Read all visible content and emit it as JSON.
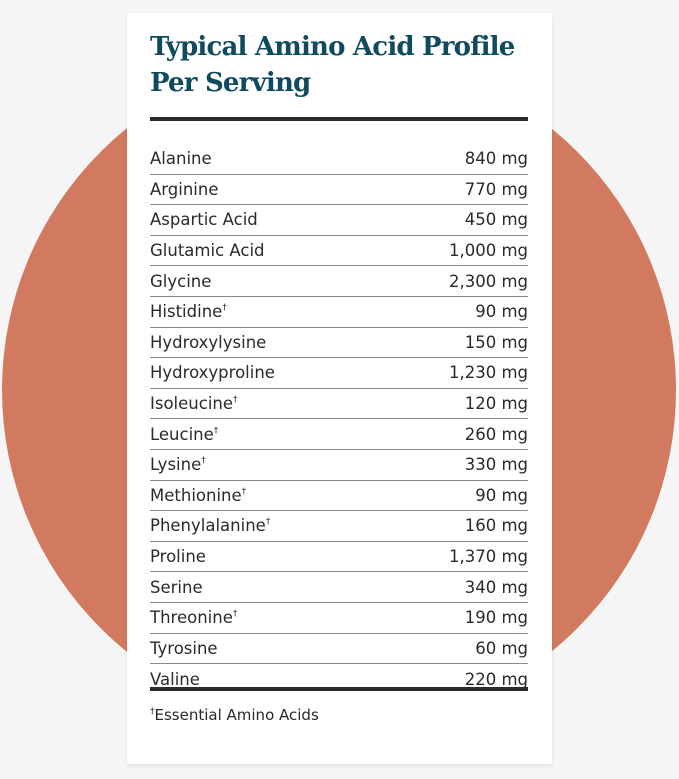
{
  "title": "Typical Amino Acid Profile Per Serving",
  "colors": {
    "title": "#0f4a5e",
    "circle": "#d27a60",
    "rule": "#2b2b2b"
  },
  "rows": [
    {
      "name": "Alanine",
      "mark": "",
      "value": "840 mg"
    },
    {
      "name": "Arginine",
      "mark": "",
      "value": "770 mg"
    },
    {
      "name": "Aspartic Acid",
      "mark": "",
      "value": "450 mg"
    },
    {
      "name": "Glutamic Acid",
      "mark": "",
      "value": "1,000 mg"
    },
    {
      "name": "Glycine",
      "mark": "",
      "value": "2,300 mg"
    },
    {
      "name": "Histidine",
      "mark": "†",
      "value": "90 mg"
    },
    {
      "name": "Hydroxylysine",
      "mark": "",
      "value": "150 mg"
    },
    {
      "name": "Hydroxyproline",
      "mark": "",
      "value": "1,230 mg"
    },
    {
      "name": "Isoleucine",
      "mark": "†",
      "value": "120 mg"
    },
    {
      "name": "Leucine",
      "mark": "†",
      "value": "260 mg"
    },
    {
      "name": "Lysine",
      "mark": "†",
      "value": "330 mg"
    },
    {
      "name": "Methionine",
      "mark": "†",
      "value": "90 mg"
    },
    {
      "name": "Phenylalanine",
      "mark": "†",
      "value": "160 mg"
    },
    {
      "name": "Proline",
      "mark": "",
      "value": "1,370 mg"
    },
    {
      "name": "Serine",
      "mark": "",
      "value": "340 mg"
    },
    {
      "name": "Threonine",
      "mark": "†",
      "value": "190 mg"
    },
    {
      "name": "Tyrosine",
      "mark": "",
      "value": "60 mg"
    },
    {
      "name": "Valine",
      "mark": "",
      "value": "220 mg"
    }
  ],
  "footnote": {
    "mark": "†",
    "text": "Essential Amino Acids"
  }
}
